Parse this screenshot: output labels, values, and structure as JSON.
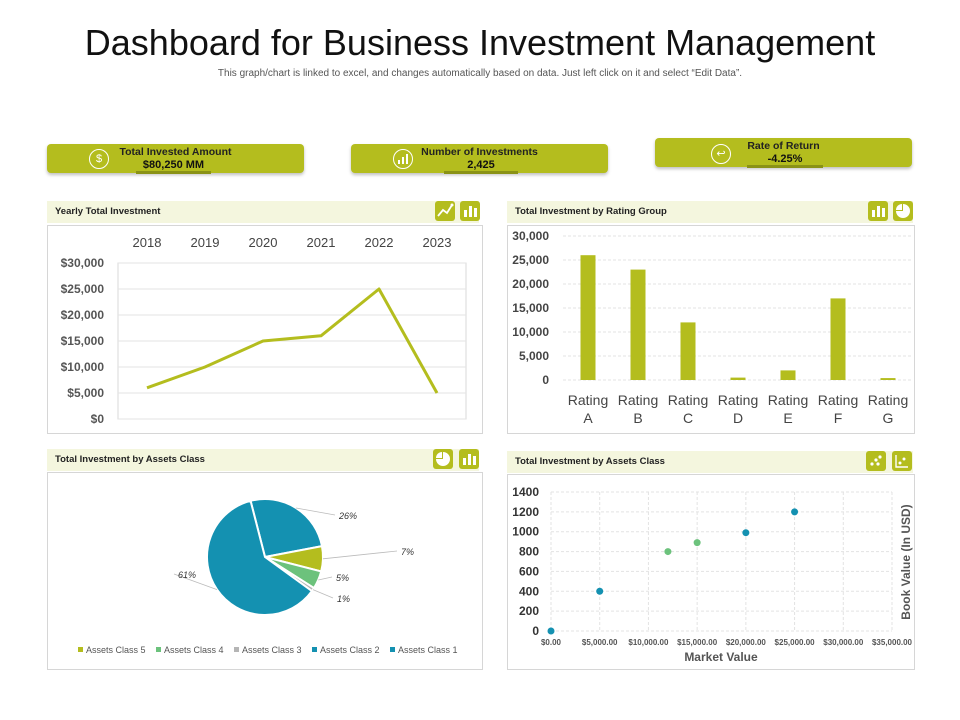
{
  "header": {
    "title": "Dashboard for Business Investment Management",
    "subtitle": "This graph/chart is linked to excel, and changes automatically based on data. Just left click on it and select “Edit Data”."
  },
  "kpis": [
    {
      "label": "Total Invested Amount",
      "value": "$80,250 MM",
      "icon": "dollar-icon"
    },
    {
      "label": "Number of Investments",
      "value": "2,425",
      "icon": "bar-chart-icon"
    },
    {
      "label": "Rate of Return",
      "value": "-4.25%",
      "icon": "return-arrow-icon"
    }
  ],
  "panels": {
    "yearly": "Yearly Total Investment",
    "rating": "Total  Investment  by Rating Group",
    "pie": "Total  Investment by Assets Class",
    "scatter": "Total  Investment by Assets Class"
  },
  "colors": {
    "accent": "#b4bd1e",
    "accent_dark": "#8a9216",
    "teal": "#1491b1",
    "green": "#6cc27c",
    "gray": "#b5b5b5"
  },
  "chart_data": [
    {
      "id": "yearly",
      "type": "line",
      "title": "Yearly Total Investment",
      "x": [
        "2018",
        "2019",
        "2020",
        "2021",
        "2022",
        "2023"
      ],
      "values": [
        6000,
        10000,
        15000,
        16000,
        25000,
        5000
      ],
      "yticks": [
        "$30,000",
        "$25,000",
        "$20,000",
        "$15,000",
        "$10,000",
        "$5,000",
        "$0"
      ],
      "ylim": [
        0,
        30000
      ],
      "grid": true
    },
    {
      "id": "rating",
      "type": "bar",
      "title": "Total  Investment  by Rating Group",
      "categories": [
        "Rating A",
        "Rating B",
        "Rating C",
        "Rating D",
        "Rating E",
        "Rating F",
        "Rating G"
      ],
      "values": [
        26000,
        23000,
        12000,
        500,
        2000,
        17000,
        400
      ],
      "yticks": [
        "30,000",
        "25,000",
        "20,000",
        "15,000",
        "10,000",
        "5,000",
        "0"
      ],
      "ylim": [
        0,
        30000
      ],
      "grid": true
    },
    {
      "id": "pie",
      "type": "pie",
      "title": "Total  Investment by Assets Class",
      "slices": [
        {
          "name": "Assets Class 1",
          "value": 26,
          "label": "26%"
        },
        {
          "name": "Assets Class 5",
          "value": 7,
          "label": "7%"
        },
        {
          "name": "Assets Class 4",
          "value": 5,
          "label": "5%"
        },
        {
          "name": "Assets Class 3",
          "value": 1,
          "label": "1%"
        },
        {
          "name": "Assets Class 2",
          "value": 61,
          "label": "61%"
        }
      ],
      "legend": [
        "Assets Class 5",
        "Assets Class 4",
        "Assets Class 3",
        "Assets Class 2",
        "Assets Class 1"
      ],
      "legend_position": "bottom"
    },
    {
      "id": "scatter",
      "type": "scatter",
      "title": "Total  Investment by Assets Class",
      "xlabel": "Market Value",
      "ylabel": "Book Value (In USD)",
      "xlim": [
        0,
        35000
      ],
      "ylim": [
        0,
        1400
      ],
      "xticks": [
        "$0.00",
        "$5,000.00",
        "$10,000.00",
        "$15,000.00",
        "$20,000.00",
        "$25,000.00",
        "$30,000.00",
        "$35,000.00"
      ],
      "yticks": [
        "1400",
        "1200",
        "1000",
        "800",
        "600",
        "400",
        "200",
        "0"
      ],
      "points": [
        {
          "x": 0,
          "y": 0,
          "group": "teal"
        },
        {
          "x": 5000,
          "y": 400,
          "group": "teal"
        },
        {
          "x": 12000,
          "y": 800,
          "group": "green"
        },
        {
          "x": 15000,
          "y": 890,
          "group": "green"
        },
        {
          "x": 20000,
          "y": 990,
          "group": "teal"
        },
        {
          "x": 25000,
          "y": 1200,
          "group": "teal"
        }
      ],
      "grid": true
    }
  ]
}
